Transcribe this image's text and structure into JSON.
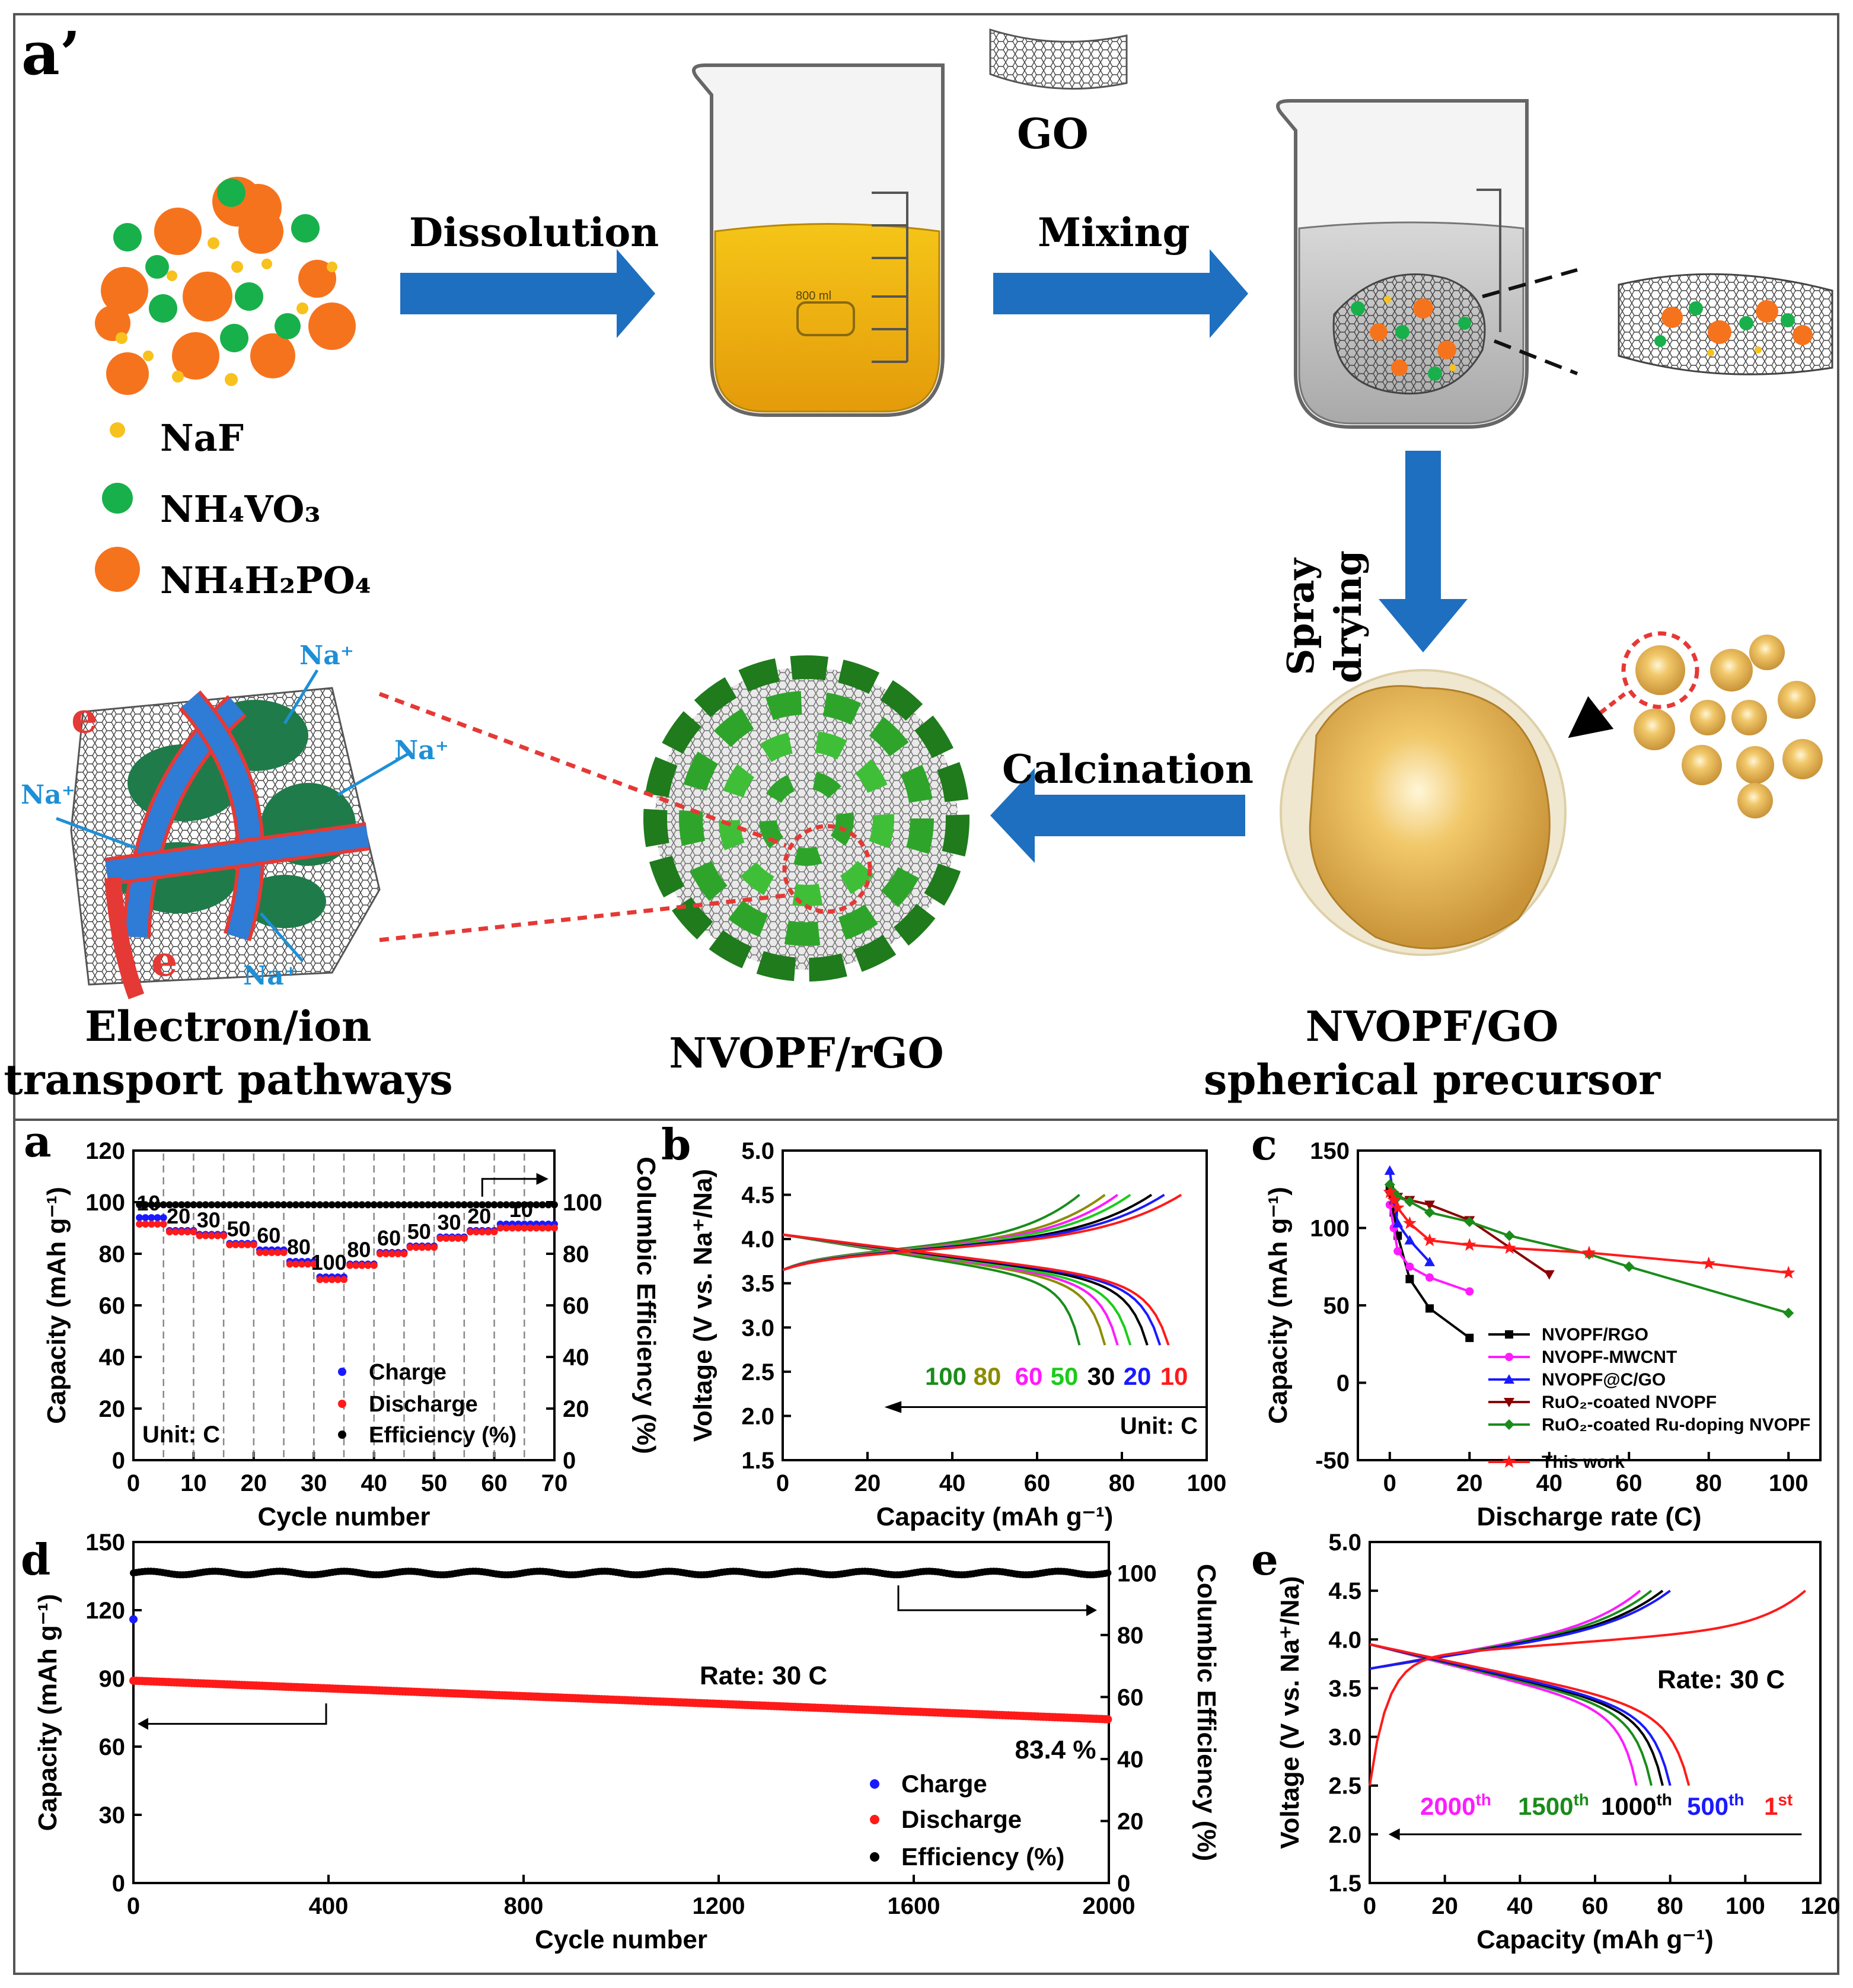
{
  "schematic": {
    "panel_label": "a’",
    "steps": {
      "dissolution": "Dissolution",
      "mixing": "Mixing",
      "spray": "Spray",
      "drying": "drying",
      "calcination": "Calcination"
    },
    "go_label": "GO",
    "beaker_mark": "800 ml",
    "legend": [
      {
        "label": "NaF",
        "color": "#f7c11e"
      },
      {
        "label": "NH₄VO₃",
        "color": "#18b04b"
      },
      {
        "label": "NH₄H₂PO₄",
        "color": "#f6731d"
      }
    ],
    "ion_label": "Na⁺",
    "electron_label": "e",
    "products": {
      "transport_line1": "Electron/ion",
      "transport_line2": "transport pathways",
      "rgo": "NVOPF/rGO",
      "precursor_line1": "NVOPF/GO",
      "precursor_line2": "spherical precursor"
    }
  },
  "chart_data": [
    {
      "id": "a",
      "type": "scatter",
      "panel_label": "a",
      "xlabel": "Cycle number",
      "ylabel": "Capacity (mAh g⁻¹)",
      "y2label": "Columbic Efficiency (%)",
      "xlim": [
        0,
        70
      ],
      "ylim": [
        0,
        120
      ],
      "y2lim": [
        0,
        120
      ],
      "xticks": [
        "0",
        "10",
        "20",
        "30",
        "40",
        "50",
        "60",
        "70"
      ],
      "yticks": [
        "0",
        "20",
        "40",
        "60",
        "80",
        "100",
        "120"
      ],
      "y2ticks": [
        "0",
        "20",
        "40",
        "60",
        "80",
        "100"
      ],
      "unit_label": "Unit: C",
      "rate_labels": [
        "10",
        "20",
        "30",
        "50",
        "60",
        "80",
        "100",
        "80",
        "60",
        "50",
        "30",
        "20",
        "10"
      ],
      "charge_levels": [
        94,
        89,
        87.5,
        84,
        81.5,
        77,
        71,
        76,
        80.5,
        83,
        86.5,
        89,
        91.5
      ],
      "discharge_levels": [
        91.5,
        88.5,
        87,
        83.5,
        80.5,
        76,
        70,
        75.5,
        80,
        82.5,
        86,
        88.5,
        90
      ],
      "efficiency": 99,
      "series": [
        {
          "name": "Charge",
          "color": "#1a1aff"
        },
        {
          "name": "Discharge",
          "color": "#ff1a1a"
        },
        {
          "name": "Efficiency (%)",
          "color": "#000000"
        }
      ]
    },
    {
      "id": "b",
      "type": "line",
      "panel_label": "b",
      "xlabel": "Capacity (mAh g⁻¹)",
      "ylabel": "Voltage (V vs. Na⁺/Na)",
      "xlim": [
        0,
        100
      ],
      "ylim": [
        1.5,
        5.0
      ],
      "xticks": [
        "0",
        "20",
        "40",
        "60",
        "80",
        "100"
      ],
      "yticks": [
        "1.5",
        "2.0",
        "2.5",
        "3.0",
        "3.5",
        "4.0",
        "4.5",
        "5.0"
      ],
      "unit_label": "Unit: C",
      "series": [
        {
          "name": "100",
          "color": "#1a8c1a",
          "charge_end": 70,
          "discharge_end": 70
        },
        {
          "name": "80",
          "color": "#8c8c00",
          "charge_end": 76,
          "discharge_end": 76
        },
        {
          "name": "60",
          "color": "#ff1aff",
          "charge_end": 79,
          "discharge_end": 79
        },
        {
          "name": "50",
          "color": "#1acc1a",
          "charge_end": 82,
          "discharge_end": 82
        },
        {
          "name": "30",
          "color": "#000000",
          "charge_end": 87,
          "discharge_end": 86
        },
        {
          "name": "20",
          "color": "#1a1aff",
          "charge_end": 90,
          "discharge_end": 89
        },
        {
          "name": "10",
          "color": "#ff1a1a",
          "charge_end": 94,
          "discharge_end": 91
        }
      ]
    },
    {
      "id": "c",
      "type": "line",
      "panel_label": "c",
      "xlabel": "Discharge rate (C)",
      "ylabel": "Capacity (mAh g⁻¹)",
      "xlim": [
        -8,
        108
      ],
      "ylim": [
        -50,
        150
      ],
      "xticks": [
        "0",
        "20",
        "40",
        "60",
        "80",
        "100"
      ],
      "yticks": [
        "-50",
        "0",
        "50",
        "100",
        "150"
      ],
      "series": [
        {
          "name": "NVOPF/RGO",
          "color": "#000000",
          "marker": "square",
          "x": [
            0,
            1,
            2,
            5,
            10,
            20
          ],
          "y": [
            125,
            110,
            95,
            67,
            48,
            29
          ]
        },
        {
          "name": "NVOPF-MWCNT",
          "color": "#ff1aff",
          "marker": "circle",
          "x": [
            0,
            1,
            2,
            5,
            10,
            20
          ],
          "y": [
            115,
            100,
            85,
            75,
            68,
            59
          ]
        },
        {
          "name": "NVOPF@C/GO",
          "color": "#1a1aff",
          "marker": "triangle",
          "x": [
            0,
            1,
            2,
            5,
            10
          ],
          "y": [
            137,
            118,
            103,
            92,
            78
          ]
        },
        {
          "name": "RuO₂-coated NVOPF",
          "color": "#8b0000",
          "marker": "down-triangle",
          "x": [
            0,
            1,
            2,
            5,
            10,
            20,
            40
          ],
          "y": [
            122,
            121,
            120,
            118,
            115,
            105,
            70
          ]
        },
        {
          "name": "RuO₂-coated Ru-doping NVOPF",
          "color": "#1a8c1a",
          "marker": "diamond",
          "x": [
            0,
            1,
            2,
            5,
            10,
            20,
            30,
            50,
            60,
            100
          ],
          "y": [
            128,
            123,
            120,
            117,
            110,
            104,
            95,
            83,
            75,
            45
          ]
        },
        {
          "name": "This work",
          "color": "#ff1a1a",
          "marker": "star",
          "x": [
            0,
            1,
            2,
            5,
            10,
            20,
            30,
            50,
            80,
            100
          ],
          "y": [
            123,
            118,
            113,
            103,
            92,
            89,
            87,
            84,
            77,
            71
          ]
        }
      ]
    },
    {
      "id": "d",
      "type": "scatter",
      "panel_label": "d",
      "xlabel": "Cycle number",
      "ylabel": "Capacity (mAh g⁻¹)",
      "y2label": "Columbic Efficiency (%)",
      "xlim": [
        0,
        2000
      ],
      "ylim": [
        0,
        150
      ],
      "y2lim": [
        0,
        110
      ],
      "xticks": [
        "0",
        "400",
        "800",
        "1200",
        "1600",
        "2000"
      ],
      "yticks": [
        "0",
        "30",
        "60",
        "90",
        "120",
        "150"
      ],
      "y2ticks": [
        "0",
        "20",
        "40",
        "60",
        "80",
        "100"
      ],
      "rate_label": "Rate: 30 C",
      "retention_label": "83.4 %",
      "discharge_start": 89,
      "discharge_end": 72,
      "first_charge": 116,
      "efficiency": 100,
      "series": [
        {
          "name": "Charge",
          "color": "#1a1aff"
        },
        {
          "name": "Discharge",
          "color": "#ff1a1a"
        },
        {
          "name": "Efficiency (%)",
          "color": "#000000"
        }
      ]
    },
    {
      "id": "e",
      "type": "line",
      "panel_label": "e",
      "xlabel": "Capacity (mAh g⁻¹)",
      "ylabel": "Voltage (V vs. Na⁺/Na)",
      "xlim": [
        0,
        120
      ],
      "ylim": [
        1.5,
        5.0
      ],
      "xticks": [
        "0",
        "20",
        "40",
        "60",
        "80",
        "100",
        "120"
      ],
      "yticks": [
        "1.5",
        "2.0",
        "2.5",
        "3.0",
        "3.5",
        "4.0",
        "4.5",
        "5.0"
      ],
      "rate_label": "Rate: 30 C",
      "series": [
        {
          "name": "2000",
          "sup": "th",
          "color": "#ff1aff",
          "charge_end": 72,
          "discharge_end": 71
        },
        {
          "name": "1500",
          "sup": "th",
          "color": "#1a8c1a",
          "charge_end": 75,
          "discharge_end": 75
        },
        {
          "name": "1000",
          "sup": "th",
          "color": "#000000",
          "charge_end": 78,
          "discharge_end": 78
        },
        {
          "name": "500",
          "sup": "th",
          "color": "#1a1aff",
          "charge_end": 80,
          "discharge_end": 80
        },
        {
          "name": "1",
          "sup": "st",
          "color": "#ff1a1a",
          "charge_end": 116,
          "discharge_end": 85
        }
      ]
    }
  ]
}
